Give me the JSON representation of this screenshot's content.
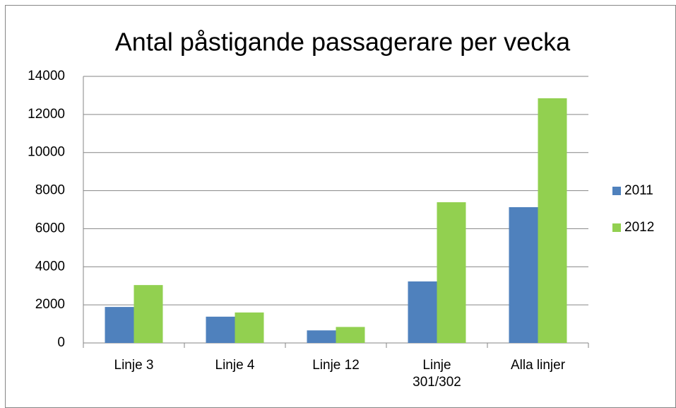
{
  "chart_data": {
    "type": "bar",
    "title": "Antal påstigande passagerare per vecka",
    "categories": [
      "Linje 3",
      "Linje 4",
      "Linje 12",
      "Linje 301/302",
      "Alla linjer"
    ],
    "series": [
      {
        "name": "2011",
        "color": "#4f81bd",
        "values": [
          1890,
          1380,
          660,
          3230,
          7130
        ]
      },
      {
        "name": "2012",
        "color": "#92d050",
        "values": [
          3040,
          1600,
          840,
          7390,
          12850
        ]
      }
    ],
    "ylim": [
      0,
      14000
    ],
    "yticks": [
      0,
      2000,
      4000,
      6000,
      8000,
      10000,
      12000,
      14000
    ],
    "grid": true,
    "legend": "right"
  }
}
